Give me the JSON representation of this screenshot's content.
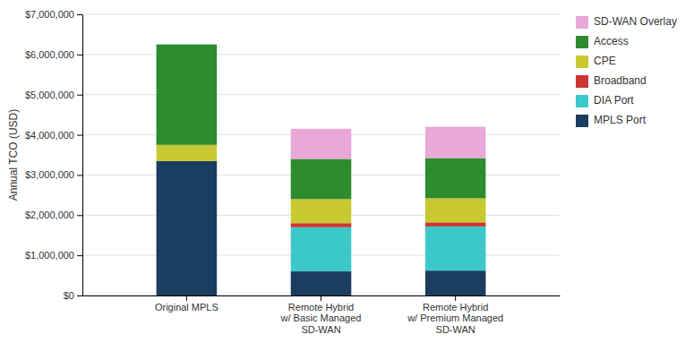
{
  "chart_data": {
    "type": "bar",
    "stacked": true,
    "categories": [
      "Original MPLS",
      "Remote Hybrid\nw/ Basic Managed\nSD-WAN",
      "Remote Hybrid\nw/ Premium Managed\nSD-WAN"
    ],
    "series": [
      {
        "name": "MPLS Port",
        "color": "#1b3d5f",
        "values": [
          3350000,
          600000,
          620000
        ]
      },
      {
        "name": "DIA Port",
        "color": "#3cc8c8",
        "values": [
          0,
          1100000,
          1100000
        ]
      },
      {
        "name": "Broadband",
        "color": "#cc3333",
        "values": [
          0,
          100000,
          100000
        ]
      },
      {
        "name": "CPE",
        "color": "#c8c832",
        "values": [
          400000,
          600000,
          600000
        ]
      },
      {
        "name": "Access",
        "color": "#2e8b2e",
        "values": [
          2500000,
          1000000,
          1000000
        ]
      },
      {
        "name": "SD-WAN Overlay",
        "color": "#e8a8d8",
        "values": [
          0,
          750000,
          780000
        ]
      }
    ],
    "ylabel": "Annual TCO (USD)",
    "ylim": [
      0,
      7000000
    ],
    "yticks": [
      {
        "value": 0,
        "label": "$0"
      },
      {
        "value": 1000000,
        "label": "$1,000,000"
      },
      {
        "value": 2000000,
        "label": "$2,000,000"
      },
      {
        "value": 3000000,
        "label": "$3,000,000"
      },
      {
        "value": 4000000,
        "label": "$4,000,000"
      },
      {
        "value": 5000000,
        "label": "$5,000,000"
      },
      {
        "value": 6000000,
        "label": "$6,000,000"
      },
      {
        "value": 7000000,
        "label": "$7,000,000"
      }
    ],
    "grid": true,
    "legend": "right"
  }
}
